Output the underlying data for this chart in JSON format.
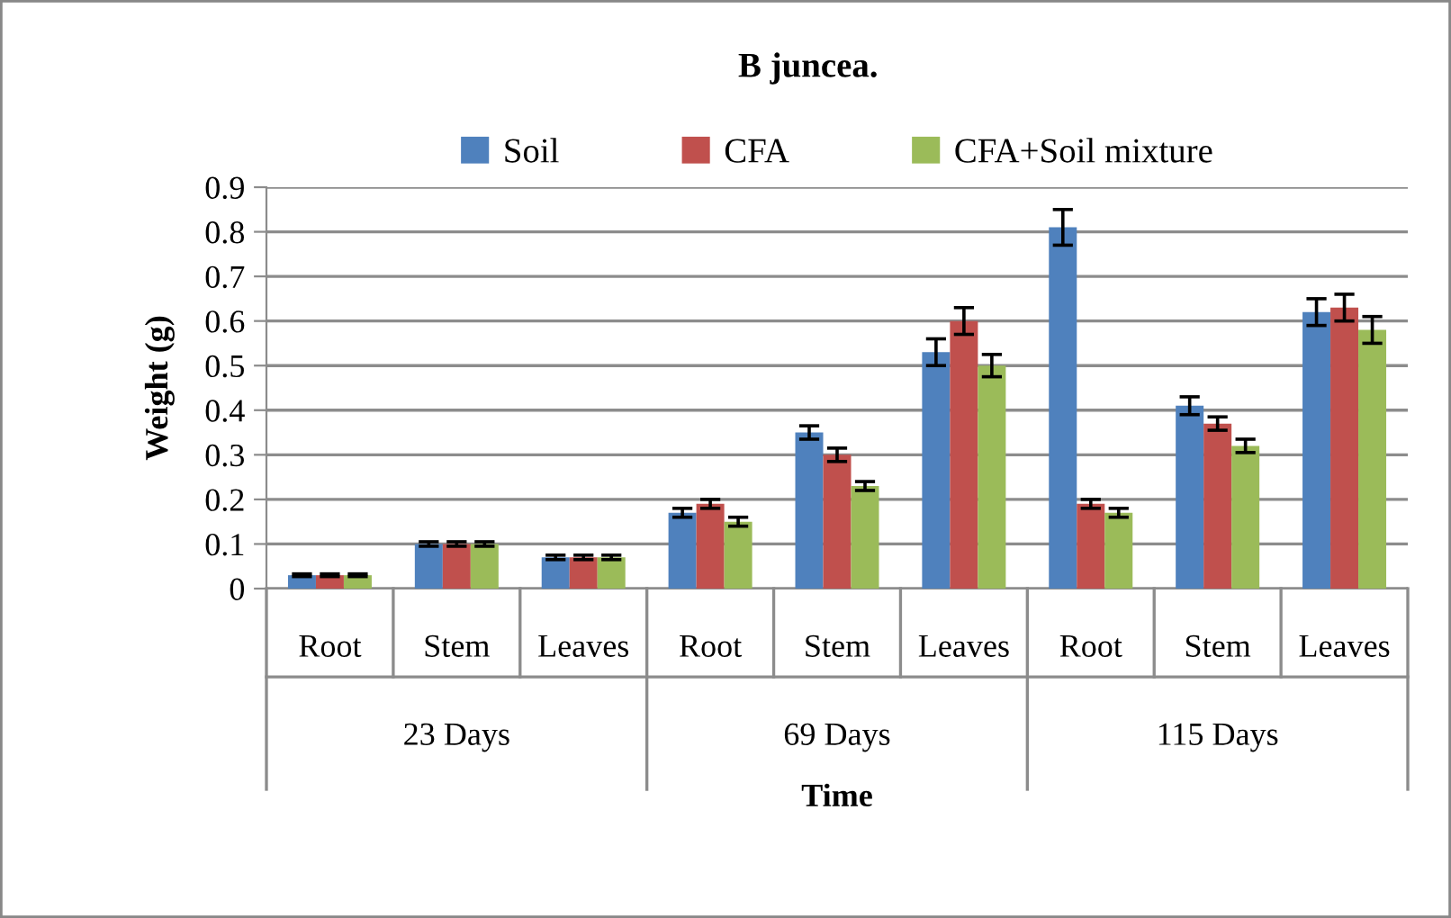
{
  "chart_data": {
    "type": "bar",
    "title": "B juncea.",
    "xlabel": "Time",
    "ylabel": "Weight (g)",
    "categories": [
      "Root",
      "Stem",
      "Leaves",
      "Root",
      "Stem",
      "Leaves",
      "Root",
      "Stem",
      "Leaves"
    ],
    "series": [
      {
        "name": "Soil",
        "color": "#4f81bd",
        "values": [
          0.03,
          0.1,
          0.07,
          0.17,
          0.35,
          0.53,
          0.81,
          0.41,
          0.62
        ],
        "errors": [
          0.003,
          0.005,
          0.005,
          0.01,
          0.015,
          0.03,
          0.04,
          0.02,
          0.03
        ]
      },
      {
        "name": "CFA",
        "color": "#c0504d",
        "values": [
          0.03,
          0.1,
          0.07,
          0.19,
          0.3,
          0.6,
          0.19,
          0.37,
          0.63
        ],
        "errors": [
          0.003,
          0.005,
          0.005,
          0.01,
          0.015,
          0.03,
          0.01,
          0.015,
          0.03
        ]
      },
      {
        "name": "CFA+Soil mixture",
        "color": "#9bbb59",
        "values": [
          0.03,
          0.1,
          0.07,
          0.15,
          0.23,
          0.5,
          0.17,
          0.32,
          0.58
        ],
        "errors": [
          0.003,
          0.005,
          0.005,
          0.01,
          0.01,
          0.025,
          0.01,
          0.015,
          0.03
        ]
      }
    ],
    "annotations": [
      "23 Days",
      "69 Days",
      "115 Days"
    ],
    "ylim": [
      0,
      0.9
    ],
    "yticks": [
      {
        "value": 0,
        "label": "0"
      },
      0.1,
      0.2,
      0.3,
      0.4,
      0.5,
      0.6,
      0.7,
      0.8,
      0.9
    ],
    "grid": "y",
    "legend": "top"
  }
}
